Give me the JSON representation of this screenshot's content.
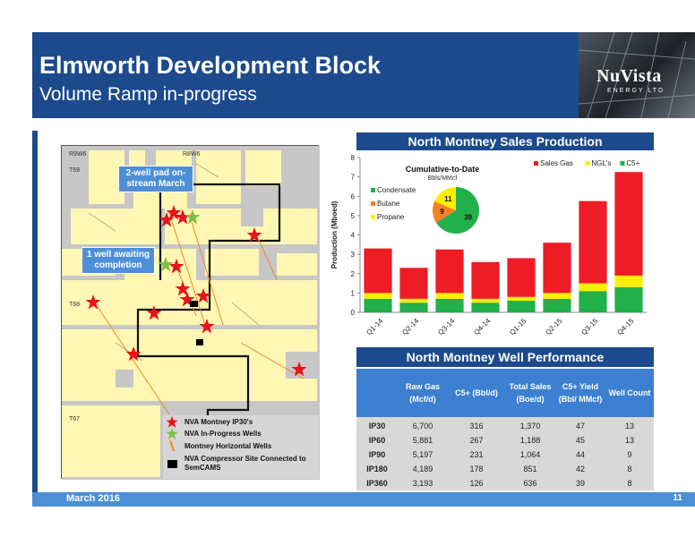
{
  "header": {
    "title": "Elmworth Development Block",
    "subtitle": "Volume Ramp in-progress"
  },
  "logo": {
    "name": "NuVista",
    "sub": "ENERGY LTD"
  },
  "map": {
    "labels": {
      "r9w6": "R9W6",
      "r8w6": "R8W6",
      "t69": "T69",
      "t68": "T68",
      "t67": "T67"
    },
    "callouts": {
      "pad": "2-well pad on-stream March",
      "awaiting": "1 well awaiting completion"
    },
    "legend": [
      {
        "label": "NVA Montney IP30's",
        "icon": "red-star-icon",
        "color": "#e8131b"
      },
      {
        "label": "NVA In-Progress Wells",
        "icon": "green-star-icon",
        "color": "#7cc144"
      },
      {
        "label": "Montney Horizontal Wells",
        "icon": "orange-line-icon",
        "color": "#f08a24"
      },
      {
        "label": "NVA Compressor Site Connected to SemCAMS",
        "icon": "compressor-icon",
        "color": "#000000"
      }
    ]
  },
  "sales_title": "North Montney Sales Production",
  "perf_title": "North Montney Well Performance",
  "chart_data": [
    {
      "type": "bar",
      "stacked": true,
      "categories": [
        "Q1-14",
        "Q2-14",
        "Q3-14",
        "Q4-14",
        "Q1-15",
        "Q2-15",
        "Q3-15",
        "Q4-15"
      ],
      "series": [
        {
          "name": "C5+",
          "color": "#22b04b",
          "values": [
            0.7,
            0.5,
            0.7,
            0.5,
            0.6,
            0.7,
            1.1,
            1.3
          ]
        },
        {
          "name": "NGL's",
          "color": "#ffee00",
          "values": [
            0.3,
            0.2,
            0.3,
            0.2,
            0.2,
            0.3,
            0.4,
            0.6
          ]
        },
        {
          "name": "Sales Gas",
          "color": "#ee1c24",
          "values": [
            2.3,
            1.6,
            2.25,
            1.9,
            2.0,
            2.6,
            4.25,
            5.35
          ]
        }
      ],
      "ylabel": "Production (Mboed)",
      "ylim": [
        0,
        8
      ],
      "yticks": [
        "0",
        "1",
        "2",
        "3",
        "4",
        "5",
        "6",
        "7",
        "8"
      ],
      "legend": "top-right"
    },
    {
      "type": "pie",
      "title": "Cumulative-to-Date",
      "subtitle": "Bbls/MMcf",
      "slices": [
        {
          "name": "Condensate",
          "value": 39,
          "label": "39",
          "color": "#22b04b"
        },
        {
          "name": "Butane",
          "value": 9,
          "label": "9",
          "color": "#f58220"
        },
        {
          "name": "Propane",
          "value": 11,
          "label": "11",
          "color": "#ffee00"
        }
      ],
      "legend": "left"
    }
  ],
  "perf_table": {
    "headers": [
      "Raw Gas (Mcf/d)",
      "C5+ (Bbl/d)",
      "Total Sales (Boe/d)",
      "C5+ Yield (Bbl/ MMcf)",
      "Well Count"
    ],
    "rows": [
      [
        "IP30",
        "6,700",
        "316",
        "1,370",
        "47",
        "13"
      ],
      [
        "IP60",
        "5,881",
        "267",
        "1,188",
        "45",
        "13"
      ],
      [
        "IP90",
        "5,197",
        "231",
        "1,064",
        "44",
        "9"
      ],
      [
        "IP180",
        "4,189",
        "178",
        "851",
        "42",
        "8"
      ],
      [
        "IP360",
        "3,193",
        "126",
        "636",
        "39",
        "8"
      ]
    ]
  },
  "footer": {
    "date": "March 2016",
    "page": "11"
  }
}
